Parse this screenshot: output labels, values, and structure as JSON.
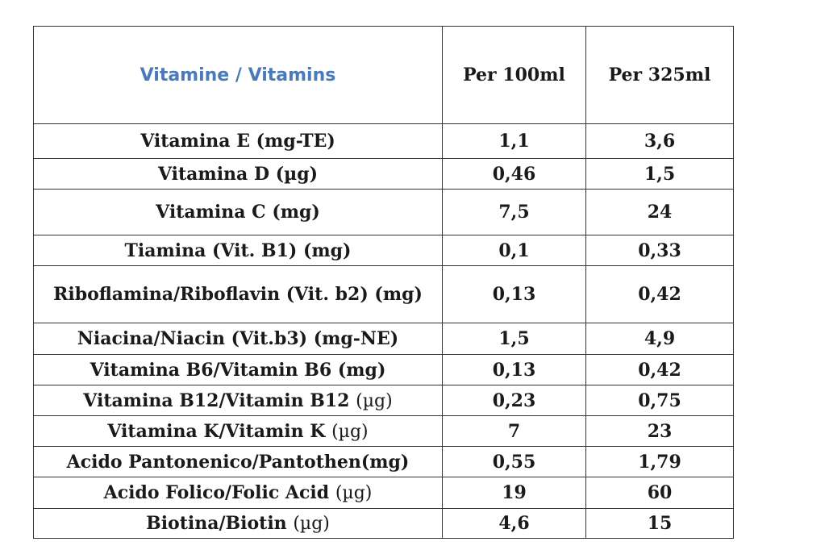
{
  "table": {
    "headers": {
      "name": "Vitamine / Vitamins",
      "per100": "Per 100ml",
      "per325": "Per 325ml"
    },
    "rows": [
      {
        "name": "Vitamina E (mg-TE)",
        "unit": "",
        "per100": "1,1",
        "per325": "3,6"
      },
      {
        "name": "Vitamina D (µg)",
        "unit": "",
        "per100": "0,46",
        "per325": "1,5"
      },
      {
        "name": "Vitamina C (mg)",
        "unit": "",
        "per100": "7,5",
        "per325": "24"
      },
      {
        "name": "Tiamina (Vit. B1) (mg)",
        "unit": "",
        "per100": "0,1",
        "per325": "0,33"
      },
      {
        "name": "Riboflamina/Riboflavin (Vit. b2) (mg)",
        "unit": "",
        "per100": "0,13",
        "per325": "0,42"
      },
      {
        "name": "Niacina/Niacin (Vit.b3) (mg-NE)",
        "unit": "",
        "per100": "1,5",
        "per325": "4,9"
      },
      {
        "name": "Vitamina B6/Vitamin B6 (mg)",
        "unit": "",
        "per100": "0,13",
        "per325": "0,42"
      },
      {
        "name": "Vitamina B12/Vitamin B12",
        "unit": "(µg)",
        "per100": "0,23",
        "per325": "0,75"
      },
      {
        "name": "Vitamina K/Vitamin K",
        "unit": "(µg)",
        "per100": "7",
        "per325": "23"
      },
      {
        "name": "Acido Pantonenico/Pantothen(mg)",
        "unit": "",
        "per100": "0,55",
        "per325": "1,79"
      },
      {
        "name": "Acido Folico/Folic Acid",
        "unit": "(µg)",
        "per100": "19",
        "per325": "60"
      },
      {
        "name": "Biotina/Biotin",
        "unit": "(µg)",
        "per100": "4,6",
        "per325": "15"
      }
    ]
  }
}
